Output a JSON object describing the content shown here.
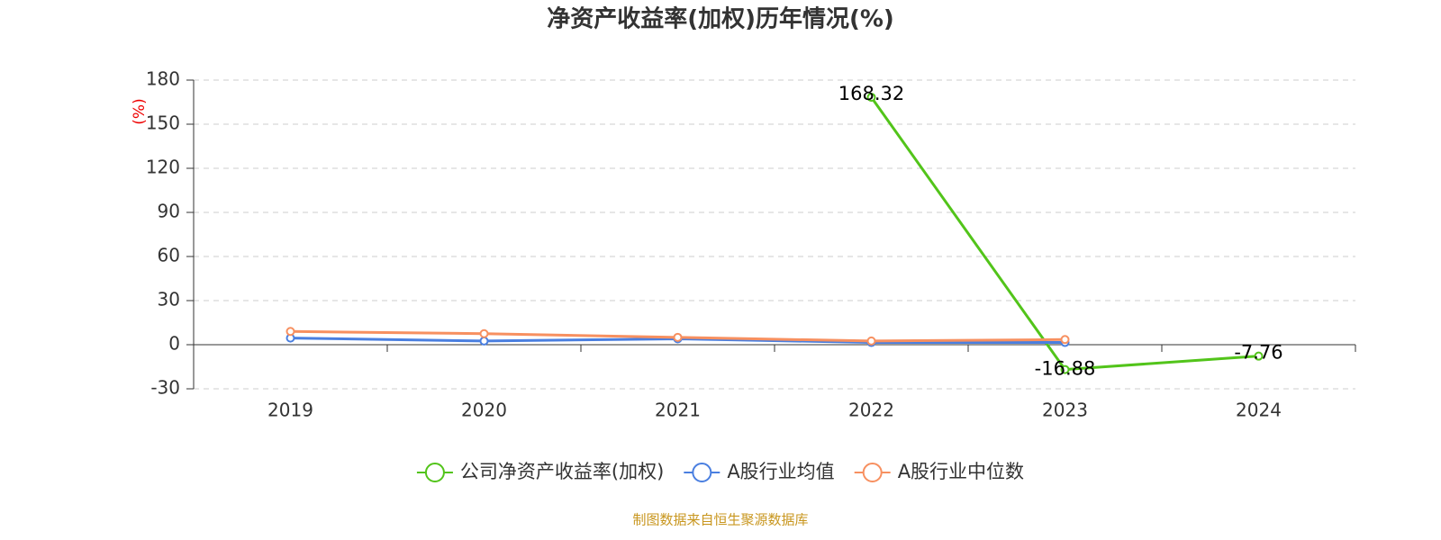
{
  "chart_data": {
    "type": "line",
    "title": "净资产收益率(加权)历年情况(%)",
    "y_label": "(%)",
    "categories": [
      "2019",
      "2020",
      "2021",
      "2022",
      "2023",
      "2024"
    ],
    "series": [
      {
        "name": "公司净资产收益率(加权)",
        "color": "#52c41a",
        "values": [
          null,
          null,
          null,
          168.32,
          -16.88,
          -7.76
        ],
        "data_labels": true
      },
      {
        "name": "A股行业均值",
        "color": "#4a7fe0",
        "values": [
          4.5,
          2.5,
          4,
          1.5,
          1.5,
          null
        ]
      },
      {
        "name": "A股行业中位数",
        "color": "#f79060",
        "values": [
          9,
          7.5,
          5,
          2.5,
          3.5,
          null
        ]
      }
    ],
    "ylim": [
      -30,
      180
    ],
    "yticks": [
      -30,
      0,
      30,
      60,
      90,
      120,
      150,
      180
    ],
    "grid": true,
    "source": "制图数据来自恒生聚源数据库"
  }
}
